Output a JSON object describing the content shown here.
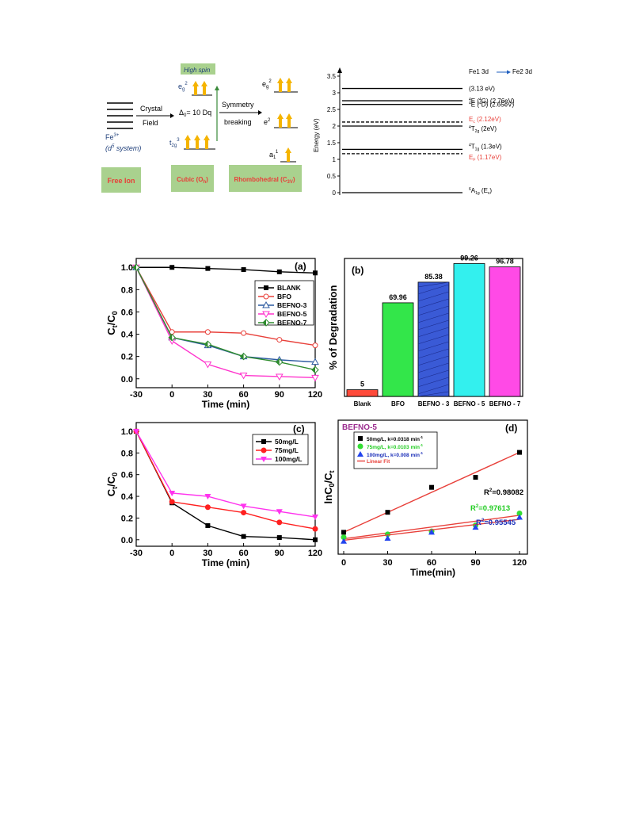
{
  "crystal_field": {
    "levels_free_ion": [
      "",
      "",
      "",
      "",
      ""
    ],
    "ion_label": "Fe",
    "ion_charge": "3+",
    "ion_config": "(d",
    "ion_config_sup": "5",
    "ion_config_end": " system)",
    "arrow1_top": "Crystal",
    "arrow1_bottom": "Field",
    "delta_label": "Δ",
    "delta_sub": "0",
    "delta_value": "= 10 Dq",
    "high_spin": "High spin",
    "eg_main": "e",
    "eg_sub": "g",
    "eg_sup": "2",
    "t2g_main": "t",
    "t2g_sub": "2g",
    "t2g_sup": "3",
    "arrow2_top": "Symmetry",
    "arrow2_bottom": "breaking",
    "eg_prime_main": "e",
    "eg_prime_sub": "g",
    "eg_prime_sup": "2",
    "e2_main": "e",
    "e2_sup": "2",
    "a1_main": "a",
    "a1_sub": "1",
    "a1_sup": "1",
    "box_free_ion": "Free Ion",
    "box_cubic": "Cubic (O",
    "box_cubic_sub": "h",
    "box_cubic_end": ")",
    "box_rhombo": "Rhombohedral (C",
    "box_rhombo_sub": "3V",
    "box_rhombo_end": ")",
    "colors": {
      "box_green": "#a9d18e",
      "arrow_orange": "#f5b400",
      "red": "#e8403a",
      "blue": "#1f3f7a"
    }
  },
  "energy_diagram": {
    "ylabel": "Energy (eV)",
    "ticks": [
      "3.5",
      "3",
      "2.5",
      "2",
      "1.5",
      "1",
      "0.5",
      "0"
    ],
    "header_a": "Fe1 3d",
    "header_b": "Fe2 3d",
    "levels": [
      {
        "value": 3.13,
        "label": "(3.13 eV)",
        "style": "solid",
        "color": "#000000"
      },
      {
        "value": 2.76,
        "label_pre": "E (",
        "label_sup": "4",
        "label_mid": "G)  (2.76eV)",
        "style": "solid",
        "color": "#000000"
      },
      {
        "value": 2.65,
        "label_pre": "E (",
        "label_sup": "4",
        "label_mid": "D)  (2.65eV)",
        "style": "solid",
        "color": "#000000"
      },
      {
        "value": 2.12,
        "label": "E",
        "label_sub": "c",
        "label_end": "  (2.12eV)",
        "style": "dashed",
        "color": "#e8403a"
      },
      {
        "value": 2.0,
        "label_pre": "T",
        "label_sub": "2g",
        "label_end": "  (2eV)",
        "style": "solid",
        "color": "#000000"
      },
      {
        "value": 1.3,
        "label_pre": "T",
        "label_sub": "1g",
        "label_end": "  (1.3eV)",
        "style": "solid",
        "color": "#000000"
      },
      {
        "value": 1.17,
        "label": "E",
        "label_sub": "F",
        "label_end": "  (1.17eV)",
        "style": "dashed",
        "color": "#e8403a"
      },
      {
        "value": 0.0,
        "label_pre": "A",
        "label_sub": "1g",
        "label_end": " (E",
        "label_sub2": "v",
        "label_end2": ")",
        "style": "solid",
        "color": "#000000"
      }
    ],
    "superscripts": {
      "e1": "4",
      "e2": "4",
      "t2g": "4",
      "t1g": "4",
      "a1g": "6"
    }
  },
  "chart_data": [
    {
      "panel": "(a)",
      "type": "line",
      "x": [
        -30,
        0,
        30,
        60,
        90,
        120
      ],
      "xticks": [
        "-30",
        "0",
        "30",
        "60",
        "90",
        "120"
      ],
      "yticks": [
        "0.0",
        "0.2",
        "0.4",
        "0.6",
        "0.8",
        "1.0"
      ],
      "xlim": [
        -30,
        120
      ],
      "ylim": [
        -0.08,
        1.08
      ],
      "xlabel": "Time (min)",
      "ylabel_main": "C",
      "ylabel_sub1": "t",
      "ylabel_mid": "/C",
      "ylabel_sub2": "0",
      "legend": "top-right",
      "series": [
        {
          "name": "BLANK",
          "color": "#000000",
          "marker": "square-filled",
          "values": [
            1.0,
            1.0,
            0.99,
            0.98,
            0.96,
            0.95
          ]
        },
        {
          "name": "BFO",
          "color": "#e8403a",
          "marker": "circle-open",
          "values": [
            1.0,
            0.42,
            0.42,
            0.41,
            0.35,
            0.3
          ]
        },
        {
          "name": "BEFNO-3",
          "color": "#2c5aa0",
          "marker": "triangle-open",
          "values": [
            1.0,
            0.37,
            0.3,
            0.2,
            0.17,
            0.15
          ]
        },
        {
          "name": "BEFNO-5",
          "color": "#ff33cc",
          "marker": "triangle-down-open",
          "values": [
            1.0,
            0.34,
            0.13,
            0.03,
            0.02,
            0.01
          ]
        },
        {
          "name": "BEFNO-7",
          "color": "#2e8b2e",
          "marker": "diamond-half",
          "values": [
            1.0,
            0.37,
            0.31,
            0.2,
            0.15,
            0.08
          ]
        }
      ]
    },
    {
      "panel": "(b)",
      "type": "bar",
      "categories": [
        "Blank",
        "BFO",
        "BEFNO - 3",
        "BEFNO - 5",
        "BEFNO - 7"
      ],
      "values": [
        5,
        69.96,
        85.38,
        99.26,
        96.78
      ],
      "value_labels": [
        "5",
        "69.96",
        "85.38",
        "99.26",
        "96.78"
      ],
      "colors": [
        "#ff4a3a",
        "#33e64a",
        "#3a5ad6",
        "#33f0ee",
        "#ff4ae6"
      ],
      "ylabel": "% of Degradation",
      "ylim": [
        0,
        100
      ]
    },
    {
      "panel": "(c)",
      "type": "line",
      "x": [
        -30,
        0,
        30,
        60,
        90,
        120
      ],
      "xticks": [
        "-30",
        "0",
        "30",
        "60",
        "90",
        "120"
      ],
      "yticks": [
        "0.0",
        "0.2",
        "0.4",
        "0.6",
        "0.8",
        "1.0"
      ],
      "xlim": [
        -30,
        120
      ],
      "ylim": [
        -0.06,
        1.08
      ],
      "xlabel": "Time (min)",
      "ylabel_main": "C",
      "ylabel_sub1": "t",
      "ylabel_mid": "/C",
      "ylabel_sub2": "0",
      "legend": "top-right",
      "series": [
        {
          "name": "50mg/L",
          "color": "#000000",
          "marker": "square-filled",
          "values": [
            1.0,
            0.34,
            0.13,
            0.03,
            0.02,
            0.0
          ]
        },
        {
          "name": "75mg/L",
          "color": "#ff2020",
          "marker": "circle-filled",
          "values": [
            1.0,
            0.35,
            0.3,
            0.25,
            0.16,
            0.1
          ]
        },
        {
          "name": "100mg/L",
          "color": "#ff33ee",
          "marker": "triangle-down-filled",
          "values": [
            1.0,
            0.43,
            0.4,
            0.31,
            0.26,
            0.21
          ]
        }
      ]
    },
    {
      "panel": "(d)",
      "type": "scatter",
      "title": "BEFNO-5",
      "x": [
        0,
        30,
        60,
        90,
        120
      ],
      "xticks": [
        "0",
        "30",
        "60",
        "90",
        "120"
      ],
      "xlim": [
        0,
        120
      ],
      "ylim": [
        0,
        1
      ],
      "xlabel": "Time(min)",
      "ylabel_main": "lnC",
      "ylabel_sub1": "0",
      "ylabel_mid": "/C",
      "ylabel_sub2": "t",
      "legend": "top-left",
      "series": [
        {
          "name": "50mg/L, k=0.0318 min",
          "name_sup": "-1",
          "color": "#000000",
          "text_color": "#000000",
          "marker": "square-filled",
          "values": [
            0.1,
            0.3,
            0.55,
            0.65,
            0.9
          ],
          "fit": [
            0.1,
            0.9
          ],
          "r2": "=0.98082"
        },
        {
          "name": "75mg/L, k=0.0103 min",
          "name_sup": "-1",
          "color": "#33dd33",
          "text_color": "#22cc22",
          "marker": "circle-filled",
          "values": [
            0.05,
            0.08,
            0.11,
            0.17,
            0.29
          ],
          "fit": [
            0.035,
            0.27
          ],
          "r2": "=0.97613"
        },
        {
          "name": "100mg/L, k=0.008 min",
          "name_sup": "-1",
          "color": "#2244ee",
          "text_color": "#1a2eb8",
          "marker": "triangle-filled",
          "values": [
            0.01,
            0.04,
            0.1,
            0.15,
            0.25
          ],
          "fit": [
            0.02,
            0.23
          ],
          "r2": "=0.95545"
        }
      ],
      "fit_label": "Linear Fit",
      "fit_color": "#e8403a",
      "r2_label": "R"
    }
  ],
  "panel_labels": {
    "a": "(a)",
    "b": "(b)",
    "c": "(c)",
    "d": "(d)"
  }
}
